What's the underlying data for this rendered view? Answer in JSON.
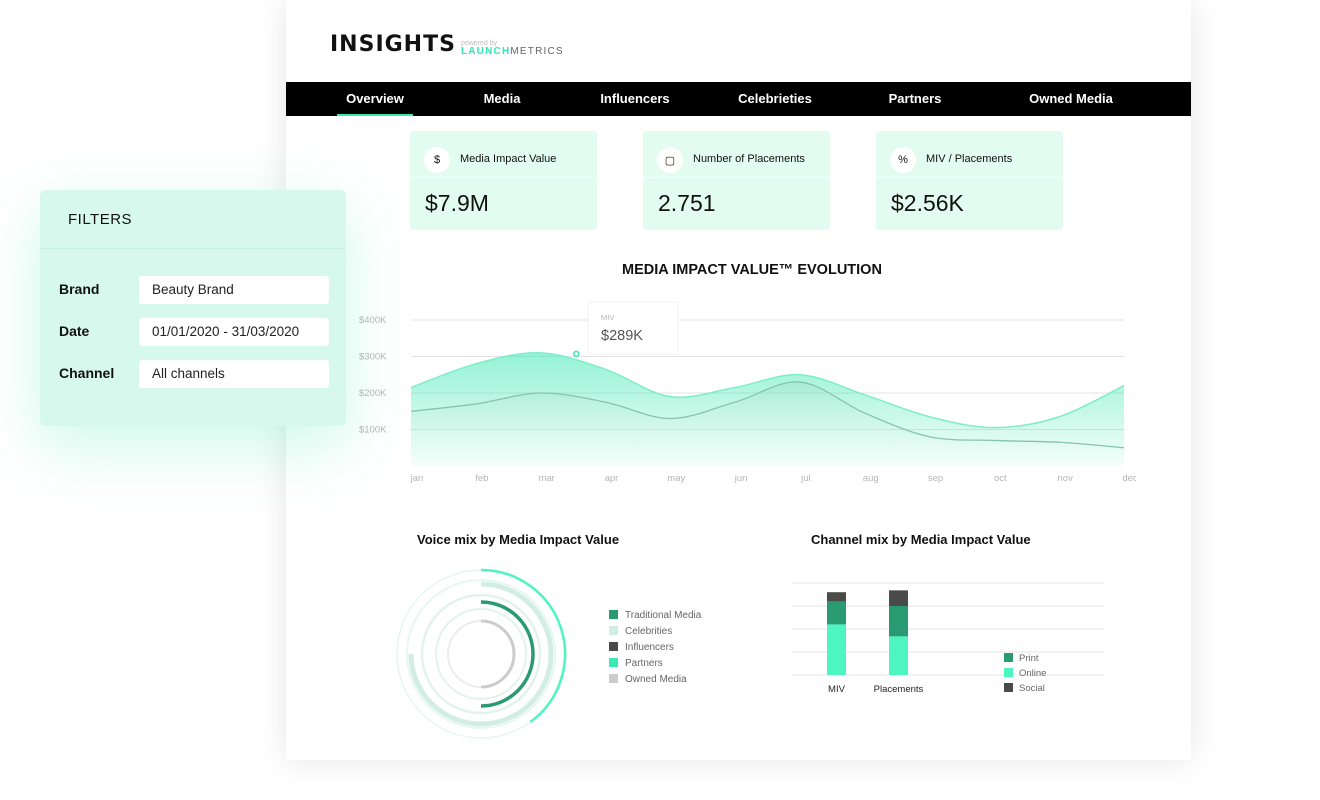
{
  "logo": {
    "main": "INSIGHTS",
    "powered": "powered by",
    "brand_a": "LAUNCH",
    "brand_b": "METRICS"
  },
  "nav": {
    "tabs": [
      "Overview",
      "Media",
      "Influencers",
      "Celebrieties",
      "Partners",
      "Owned Media"
    ],
    "active": 0
  },
  "kpis": [
    {
      "icon": "dollar-icon",
      "glyph": "$",
      "label": "Media Impact Value",
      "value": "$7.9M"
    },
    {
      "icon": "placement-icon",
      "glyph": "▢",
      "label": "Number of Placements",
      "value": "2.751"
    },
    {
      "icon": "percent-icon",
      "glyph": "%",
      "label": "MIV / Placements",
      "value": "$2.56K"
    }
  ],
  "filters": {
    "title": "FILTERS",
    "fields": [
      {
        "label": "Brand",
        "value": "Beauty Brand"
      },
      {
        "label": "Date",
        "value": "01/01/2020 - 31/03/2020"
      },
      {
        "label": "Channel",
        "value": "All channels"
      }
    ]
  },
  "colors": {
    "accent": "#3ce8b0",
    "dark_green": "#2a9a72",
    "gray_dark": "#4a4a4a",
    "gray_light": "#cccccc",
    "pale_green": "#d2ede3"
  },
  "chart_data": [
    {
      "type": "area",
      "title": "MEDIA IMPACT VALUE™ EVOLUTION",
      "categories": [
        "jan",
        "feb",
        "mar",
        "apr",
        "may",
        "jun",
        "jul",
        "aug",
        "sep",
        "oct",
        "nov",
        "dec"
      ],
      "y_ticks": [
        "$100K",
        "$200K",
        "$300K",
        "$400K"
      ],
      "ylim": [
        0,
        400
      ],
      "series": [
        {
          "values": [
            215,
            280,
            310,
            265,
            190,
            215,
            250,
            195,
            135,
            105,
            135,
            220
          ]
        },
        {
          "values": [
            150,
            170,
            200,
            175,
            130,
            175,
            230,
            145,
            80,
            70,
            65,
            50
          ]
        }
      ],
      "tooltip": {
        "label": "MIV",
        "value": "$289K"
      },
      "grid": true
    },
    {
      "type": "radial-bar",
      "title": "Voice mix by Media Impact Value",
      "legend": [
        "Traditional Media",
        "Celebrities",
        "Influencers",
        "Partners",
        "Owned Media"
      ],
      "legend_colors": [
        "#2a9a72",
        "#d2ede3",
        "#4a4a4a",
        "#3ce8b0",
        "#cccccc"
      ]
    },
    {
      "type": "bar",
      "stacked": true,
      "title": "Channel mix by Media Impact Value",
      "categories": [
        "MIV",
        "Placements"
      ],
      "series": [
        {
          "name": "Print",
          "values": [
            25,
            33
          ]
        },
        {
          "name": "Online",
          "values": [
            55,
            42
          ]
        },
        {
          "name": "Social",
          "values": [
            10,
            17
          ]
        }
      ],
      "ylim": [
        0,
        100
      ],
      "legend_colors": [
        "#2a9a72",
        "#4df5c0",
        "#4a4a4a"
      ],
      "grid": true
    }
  ]
}
